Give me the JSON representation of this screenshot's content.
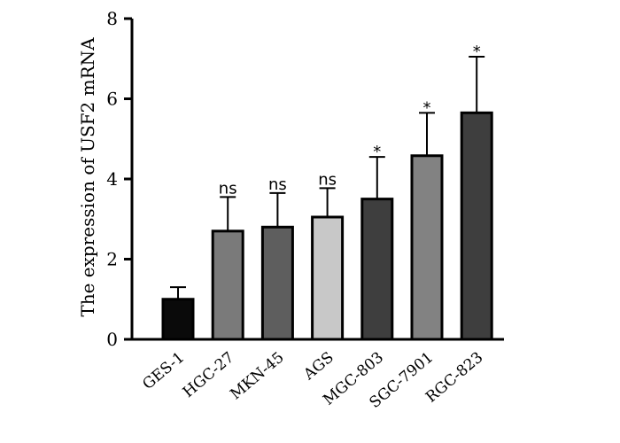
{
  "chart_data": {
    "type": "bar",
    "title": "",
    "xlabel": "",
    "ylabel": "The expression of USF2 mRNA",
    "ylim": [
      0,
      8
    ],
    "yticks": [
      0,
      2,
      4,
      6,
      8
    ],
    "grid": false,
    "categories": [
      "GES-1",
      "HGC-27",
      "MKN-45",
      "AGS",
      "MGC-803",
      "SGC-7901",
      "RGC-823"
    ],
    "values": [
      1.0,
      2.7,
      2.8,
      3.05,
      3.5,
      4.58,
      5.65
    ],
    "errors": [
      0.3,
      0.85,
      0.85,
      0.72,
      1.05,
      1.07,
      1.4
    ],
    "significance": [
      "",
      "ns",
      "ns",
      "ns",
      "*",
      "*",
      "*"
    ],
    "colors": [
      "#0a0a0a",
      "#7a7a7a",
      "#5e5e5e",
      "#c8c8c8",
      "#3e3e3e",
      "#828282",
      "#3e3e3e"
    ]
  }
}
